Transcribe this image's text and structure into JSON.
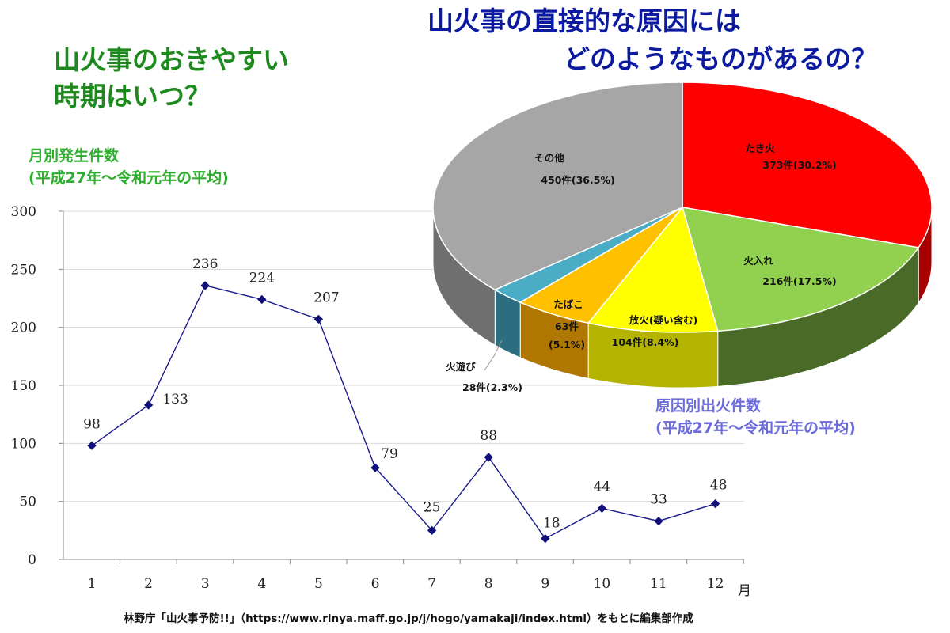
{
  "titles": {
    "left_line1": "山火事のおきやすい",
    "left_line2": "時期はいつ？",
    "right_line1": "山火事の直接的な原因には",
    "right_line2": "どのようなものがあるの？"
  },
  "line_caption": {
    "line1": "月別発生件数",
    "line2": "(平成27年～令和元年の平均)"
  },
  "pie_caption": {
    "line1": "原因別出火件数",
    "line2": "(平成27年～令和元年の平均)"
  },
  "source": "林野庁「山火事予防!!」（https://www.rinya.maff.go.jp/j/hogo/yamakaji/index.html）をもとに編集部作成",
  "colors": {
    "line": "#1a1a8c",
    "marker": "#10107a",
    "grid": "#d9d9d9",
    "green_title": "#1e8a1e",
    "blue_title": "#0b1a9e"
  },
  "chart_data": [
    {
      "type": "line",
      "title": "月別発生件数",
      "xlabel": "月",
      "ylabel": "",
      "categories": [
        "1",
        "2",
        "3",
        "4",
        "5",
        "6",
        "7",
        "8",
        "9",
        "10",
        "11",
        "12"
      ],
      "values": [
        98,
        133,
        236,
        224,
        207,
        79,
        25,
        88,
        18,
        44,
        33,
        48
      ],
      "data_labels": [
        "98",
        "133",
        "236",
        "224",
        "207",
        "79",
        "25",
        "88",
        "18",
        "44",
        "33",
        "48"
      ],
      "ylim": [
        0,
        300
      ],
      "yticks": [
        "0",
        "50",
        "100",
        "150",
        "200",
        "250",
        "300"
      ],
      "grid": true
    },
    {
      "type": "pie",
      "title": "原因別出火件数",
      "slices": [
        {
          "name": "たき火",
          "count": "373件",
          "pct": "(30.2%)",
          "value": 373,
          "percent": 30.2,
          "color": "#ff0000",
          "side": "#a80000"
        },
        {
          "name": "火入れ",
          "count": "216件",
          "pct": "(17.5%)",
          "value": 216,
          "percent": 17.5,
          "color": "#92d050",
          "side": "#4a6a28"
        },
        {
          "name": "放火(疑い含む)",
          "count": "104件",
          "pct": "(8.4%)",
          "value": 104,
          "percent": 8.4,
          "color": "#ffff00",
          "side": "#b3b300"
        },
        {
          "name": "たばこ",
          "count": "63件",
          "pct": "(5.1%)",
          "value": 63,
          "percent": 5.1,
          "color": "#ffc000",
          "side": "#b07800"
        },
        {
          "name": "火遊び",
          "count": "28件",
          "pct": "(2.3%)",
          "value": 28,
          "percent": 2.3,
          "color": "#4bacc6",
          "side": "#2c6e80"
        },
        {
          "name": "その他",
          "count": "450件",
          "pct": "(36.5%)",
          "value": 450,
          "percent": 36.5,
          "color": "#a6a6a6",
          "side": "#6f6f6f"
        }
      ]
    }
  ]
}
